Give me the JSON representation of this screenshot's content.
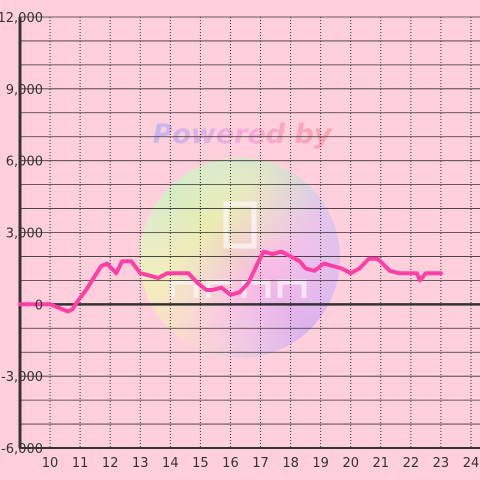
{
  "watermark": {
    "text": "Powered by"
  },
  "colors": {
    "background": "#ffd0dc",
    "grid": "#333333",
    "axis": "#333333",
    "zero_line": "#333333",
    "series": "#ff3fa6"
  },
  "chart_data": {
    "type": "line",
    "title": "",
    "xlabel": "",
    "ylabel": "",
    "xlim": [
      9.0,
      24.3
    ],
    "ylim": [
      -6000,
      12000
    ],
    "x_ticks": [
      10,
      11,
      12,
      13,
      14,
      15,
      16,
      17,
      18,
      19,
      20,
      21,
      22,
      23,
      24
    ],
    "x_tick_labels": [
      "10",
      "11",
      "12",
      "13",
      "14",
      "15",
      "16",
      "17",
      "18",
      "19",
      "20",
      "21",
      "22",
      "23",
      "24"
    ],
    "y_ticks": [
      -6000,
      -3000,
      0,
      3000,
      6000,
      9000,
      12000
    ],
    "y_tick_labels": [
      "-6,000",
      "-3,000",
      "0",
      "3,000",
      "6,000",
      "9,000",
      "12,000"
    ],
    "y_minor_step": 1000,
    "grid": true,
    "series": [
      {
        "x": [
          9.0,
          10.0,
          10.4,
          10.6,
          10.75,
          10.9,
          11.2,
          11.5,
          11.7,
          11.9,
          12.2,
          12.4,
          12.7,
          13.0,
          13.3,
          13.6,
          13.9,
          14.3,
          14.6,
          14.9,
          15.2,
          15.4,
          15.7,
          16.0,
          16.3,
          16.6,
          16.9,
          17.1,
          17.4,
          17.7,
          18.0,
          18.3,
          18.5,
          18.8,
          19.1,
          19.4,
          19.7,
          20.0,
          20.3,
          20.6,
          20.9,
          21.3,
          21.6,
          21.9,
          22.2,
          22.3,
          22.5,
          22.7,
          23.0
        ],
        "y": [
          0,
          0,
          -200,
          -300,
          -200,
          100,
          600,
          1200,
          1600,
          1700,
          1300,
          1800,
          1800,
          1300,
          1200,
          1100,
          1300,
          1300,
          1300,
          900,
          600,
          600,
          700,
          400,
          500,
          900,
          1700,
          2200,
          2100,
          2200,
          2000,
          1800,
          1500,
          1400,
          1700,
          1600,
          1500,
          1300,
          1500,
          1900,
          1900,
          1400,
          1300,
          1300,
          1300,
          1000,
          1300,
          1300,
          1300
        ]
      }
    ]
  }
}
